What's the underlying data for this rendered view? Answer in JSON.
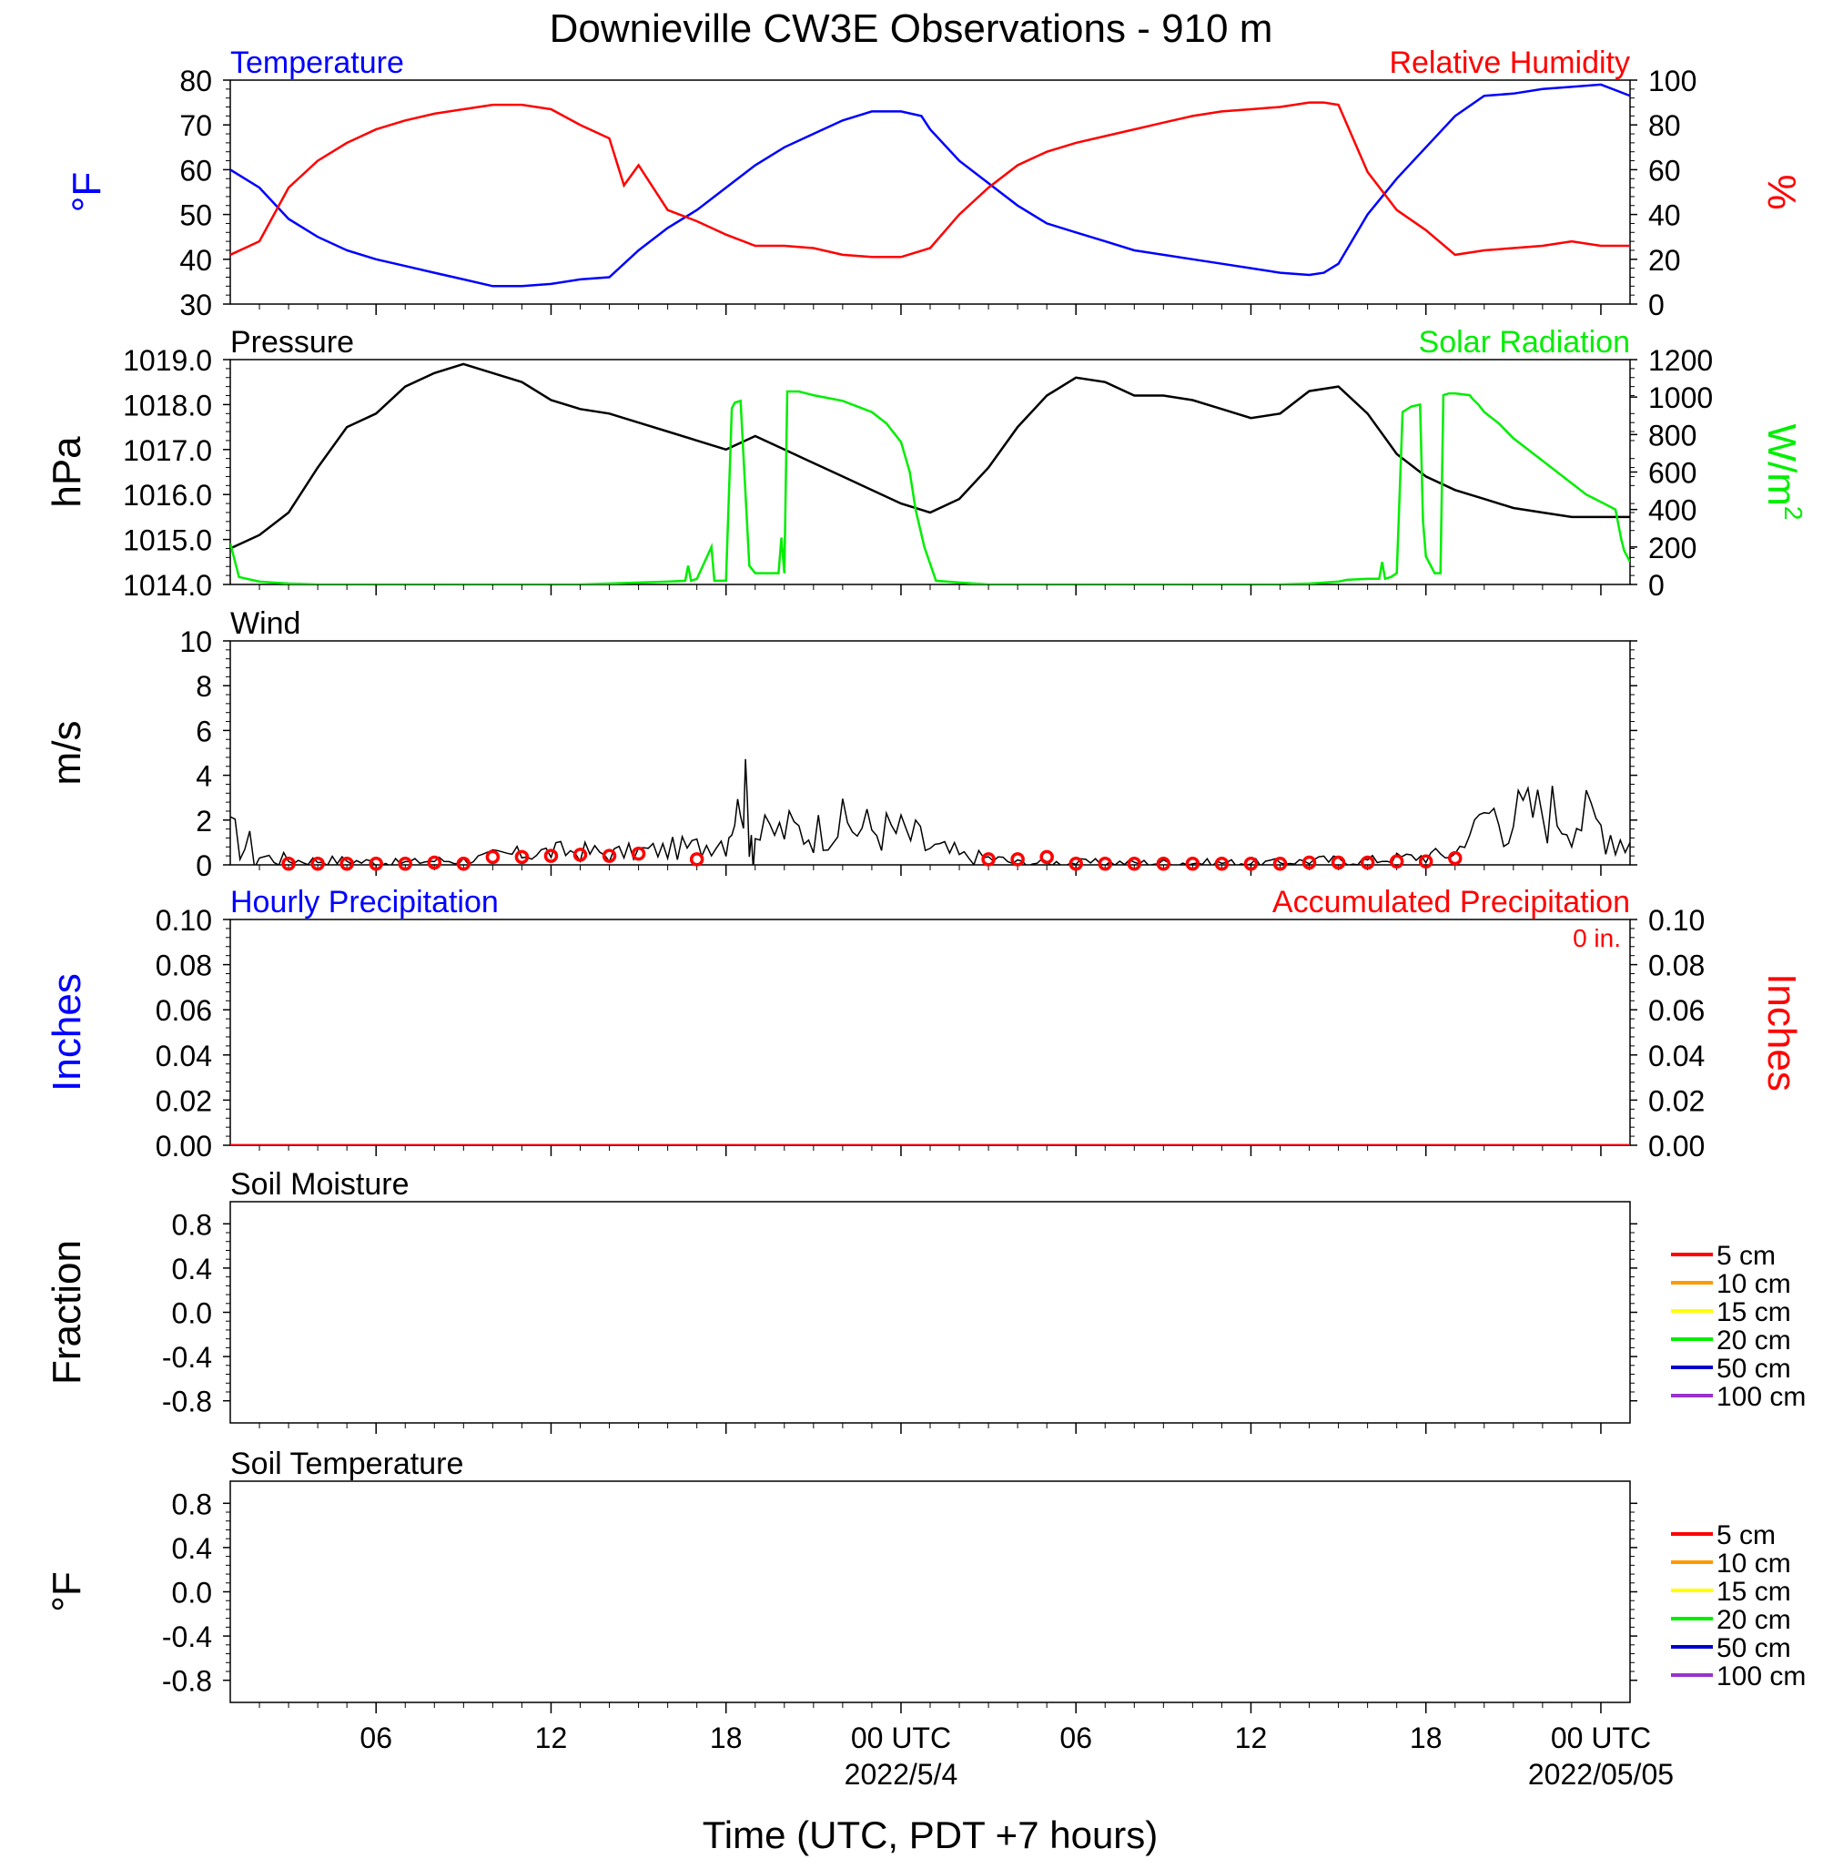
{
  "page": {
    "title": "Downieville CW3E Observations - 910 m",
    "xlabel": "Time (UTC, PDT +7 hours)",
    "x_ticks": [
      {
        "hour": 6,
        "label": "06"
      },
      {
        "hour": 12,
        "label": "12"
      },
      {
        "hour": 18,
        "label": "18"
      },
      {
        "hour": 24,
        "label": "00 UTC",
        "sub": "2022/5/4"
      },
      {
        "hour": 30,
        "label": "06"
      },
      {
        "hour": 36,
        "label": "12"
      },
      {
        "hour": 42,
        "label": "18"
      },
      {
        "hour": 48,
        "label": "00 UTC",
        "sub": "2022/05/05"
      }
    ],
    "x_range_hours": [
      1,
      49
    ]
  },
  "colors": {
    "blue": "#0000ff",
    "red": "#ff0000",
    "green": "#00ee00",
    "black": "#000000",
    "orange": "#ff9900",
    "yellow": "#ffff00",
    "darkblue": "#0000cc",
    "purple": "#9933cc"
  },
  "chart_data": [
    {
      "type": "line",
      "panel": "temperature-rh",
      "left_title": "Temperature",
      "right_title": "Relative Humidity",
      "ylabel_left": "°F",
      "ylabel_right": "%",
      "ylim_left": [
        30,
        80
      ],
      "yticks_left": [
        30,
        40,
        50,
        60,
        70,
        80
      ],
      "ylim_right": [
        0,
        100
      ],
      "yticks_right": [
        0,
        20,
        40,
        60,
        80,
        100
      ],
      "series": [
        {
          "name": "Temperature",
          "axis": "left",
          "color": "#0000ff",
          "x": [
            1,
            2,
            3,
            4,
            5,
            6,
            7,
            8,
            9,
            10,
            11,
            12,
            13,
            14,
            15,
            16,
            17,
            18,
            19,
            20,
            21,
            22,
            23,
            24,
            24.7,
            25,
            26,
            27,
            28,
            29,
            30,
            31,
            32,
            33,
            34,
            35,
            36,
            37,
            38,
            38.5,
            39,
            40,
            41,
            42,
            43,
            44,
            45,
            46,
            47,
            48,
            49
          ],
          "y": [
            60,
            56,
            49,
            45,
            42,
            40,
            38.5,
            37,
            35.5,
            34,
            34,
            34.5,
            35.5,
            36,
            42,
            47,
            51,
            56,
            61,
            65,
            68,
            71,
            73,
            73,
            72,
            69,
            62,
            57,
            52,
            48,
            46,
            44,
            42,
            41,
            40,
            39,
            38,
            37,
            36.5,
            37,
            39,
            50,
            58,
            65,
            72,
            76.5,
            77,
            78,
            78.5,
            79,
            76.5
          ]
        },
        {
          "name": "Relative Humidity",
          "axis": "right",
          "color": "#ff0000",
          "x": [
            1,
            2,
            3,
            4,
            5,
            6,
            7,
            8,
            9,
            10,
            11,
            12,
            13,
            14,
            14.5,
            15,
            16,
            17,
            18,
            19,
            20,
            21,
            22,
            23,
            24,
            25,
            26,
            27,
            28,
            29,
            30,
            31,
            32,
            33,
            34,
            35,
            36,
            37,
            38,
            38.5,
            39,
            40,
            41,
            42,
            43,
            44,
            45,
            46,
            47,
            48,
            49
          ],
          "y": [
            22,
            28,
            52,
            64,
            72,
            78,
            82,
            85,
            87,
            89,
            89,
            87,
            80,
            74,
            53,
            62,
            42,
            37,
            31,
            26,
            26,
            25,
            22,
            21,
            21,
            25,
            40,
            52,
            62,
            68,
            72,
            75,
            78,
            81,
            84,
            86,
            87,
            88,
            90,
            90,
            89,
            59,
            42,
            33,
            22,
            24,
            25,
            26,
            28,
            26,
            26
          ]
        }
      ]
    },
    {
      "type": "line",
      "panel": "pressure-solar",
      "left_title": "Pressure",
      "right_title": "Solar Radiation",
      "ylabel_left": "hPa",
      "ylabel_right": "W/m",
      "ylabel_right_sup": "2",
      "ylim_left": [
        1014.0,
        1019.0
      ],
      "yticks_left": [
        "1014.0",
        "1015.0",
        "1016.0",
        "1017.0",
        "1018.0",
        "1019.0"
      ],
      "ylim_right": [
        0,
        1200
      ],
      "yticks_right": [
        0,
        200,
        400,
        600,
        800,
        1000,
        1200
      ],
      "series": [
        {
          "name": "Pressure",
          "axis": "left",
          "color": "#000000",
          "x": [
            1,
            2,
            3,
            4,
            5,
            6,
            7,
            8,
            9,
            10,
            11,
            12,
            13,
            14,
            15,
            16,
            17,
            18,
            19,
            20,
            21,
            22,
            23,
            24,
            25,
            26,
            27,
            28,
            29,
            30,
            31,
            32,
            33,
            34,
            35,
            36,
            37,
            38,
            39,
            40,
            41,
            42,
            43,
            44,
            45,
            46,
            47,
            48,
            49
          ],
          "y": [
            1014.8,
            1015.1,
            1015.6,
            1016.6,
            1017.5,
            1017.8,
            1018.4,
            1018.7,
            1018.9,
            1018.7,
            1018.5,
            1018.1,
            1017.9,
            1017.8,
            1017.6,
            1017.4,
            1017.2,
            1017.0,
            1017.3,
            1017.0,
            1016.7,
            1016.4,
            1016.1,
            1015.8,
            1015.6,
            1015.9,
            1016.6,
            1017.5,
            1018.2,
            1018.6,
            1018.5,
            1018.2,
            1018.2,
            1018.1,
            1017.9,
            1017.7,
            1017.8,
            1018.3,
            1018.4,
            1017.8,
            1016.9,
            1016.4,
            1016.1,
            1015.9,
            1015.7,
            1015.6,
            1015.5,
            1015.5,
            1015.5
          ]
        },
        {
          "name": "Solar Radiation",
          "axis": "right",
          "color": "#00ee00",
          "x": [
            1,
            1.3,
            2,
            3,
            4,
            5,
            6,
            7,
            8,
            9,
            10,
            11,
            12,
            13,
            14,
            15,
            16,
            16.6,
            16.7,
            16.8,
            17,
            17.5,
            17.6,
            18,
            18.2,
            18.3,
            18.5,
            18.8,
            19,
            19.3,
            19.8,
            19.9,
            20.0,
            20.1,
            20.2,
            20.5,
            21,
            22,
            23,
            23.5,
            24,
            24.3,
            24.5,
            24.8,
            25.2,
            26,
            27,
            28,
            29,
            30,
            31,
            32,
            33,
            34,
            35,
            36,
            37,
            38,
            39,
            39.3,
            40,
            40.4,
            40.5,
            40.6,
            40.8,
            41,
            41.2,
            41.5,
            41.8,
            41.9,
            42.0,
            42.3,
            42.5,
            42.6,
            42.8,
            43,
            43.5,
            43.6,
            43.8,
            44,
            44.5,
            45,
            46,
            47,
            47.5,
            48,
            48.5,
            48.7,
            48.8,
            49
          ],
          "y": [
            220,
            40,
            15,
            5,
            0,
            0,
            0,
            0,
            0,
            0,
            0,
            0,
            0,
            0,
            5,
            10,
            15,
            20,
            100,
            20,
            30,
            200,
            20,
            20,
            940,
            970,
            980,
            100,
            60,
            60,
            60,
            250,
            60,
            1030,
            1030,
            1030,
            1010,
            980,
            920,
            860,
            760,
            600,
            400,
            200,
            20,
            10,
            0,
            0,
            0,
            0,
            0,
            0,
            0,
            0,
            0,
            0,
            0,
            5,
            15,
            25,
            30,
            30,
            120,
            30,
            40,
            60,
            920,
            950,
            960,
            340,
            150,
            60,
            60,
            1010,
            1020,
            1020,
            1010,
            990,
            960,
            920,
            860,
            780,
            660,
            540,
            480,
            440,
            400,
            240,
            180,
            120
          ]
        }
      ]
    },
    {
      "type": "line",
      "panel": "wind",
      "left_title": "Wind",
      "ylabel_left": "m/s",
      "ylim_left": [
        0,
        10
      ],
      "yticks_left": [
        0,
        2,
        4,
        6,
        8,
        10
      ],
      "series": [
        {
          "name": "Wind",
          "axis": "left",
          "color": "#000000",
          "x": [
            1,
            2,
            3,
            4,
            5,
            6,
            7,
            8,
            9,
            10,
            11,
            12,
            13,
            14,
            15,
            16,
            17,
            18,
            18.6,
            19,
            20,
            21,
            22,
            23,
            24,
            25,
            26,
            27,
            28,
            29,
            30,
            31,
            32,
            33,
            34,
            35,
            36,
            37,
            38,
            39,
            40,
            41,
            42,
            43,
            44,
            45,
            46,
            47,
            48,
            49
          ],
          "y": [
            1.4,
            0.4,
            0.2,
            0.2,
            0.2,
            0.1,
            0.1,
            0.2,
            0.2,
            0.4,
            0.5,
            0.6,
            0.6,
            0.5,
            0.6,
            0.7,
            0.8,
            1.2,
            3.2,
            1.3,
            1.6,
            1.5,
            1.8,
            1.6,
            1.5,
            0.8,
            0.4,
            0.3,
            0.1,
            0.1,
            0.1,
            0.1,
            0.1,
            0.1,
            0.1,
            0.1,
            0.1,
            0.1,
            0.2,
            0.2,
            0.2,
            0.3,
            0.4,
            0.5,
            2.4,
            2.2,
            2.5,
            2.3,
            1.8,
            1.0
          ]
        },
        {
          "name": "Wind hourly mean",
          "axis": "left",
          "color": "#ff0000",
          "marker": "circle",
          "x": [
            3,
            4,
            5,
            6,
            7,
            8,
            9,
            10,
            11,
            12,
            13,
            14,
            15,
            17,
            27,
            28,
            29,
            30,
            31,
            32,
            33,
            34,
            35,
            36,
            37,
            38,
            39,
            40,
            41,
            42,
            43
          ],
          "y": [
            0.05,
            0.05,
            0.05,
            0.05,
            0.05,
            0.1,
            0.05,
            0.35,
            0.35,
            0.4,
            0.45,
            0.4,
            0.5,
            0.25,
            0.25,
            0.25,
            0.35,
            0.05,
            0.05,
            0.05,
            0.05,
            0.05,
            0.05,
            0.05,
            0.05,
            0.1,
            0.1,
            0.1,
            0.15,
            0.15,
            0.3
          ]
        }
      ]
    },
    {
      "type": "line",
      "panel": "precipitation",
      "left_title": "Hourly Precipitation",
      "right_title": "Accumulated Precipitation",
      "annotation": "0 in.",
      "ylabel_left": "Inches",
      "ylabel_right": "Inches",
      "ylim_left": [
        0,
        0.1
      ],
      "yticks_left": [
        "0.00",
        "0.02",
        "0.04",
        "0.06",
        "0.08",
        "0.10"
      ],
      "ylim_right": [
        0,
        0.1
      ],
      "yticks_right": [
        "0.00",
        "0.02",
        "0.04",
        "0.06",
        "0.08",
        "0.10"
      ],
      "series": [
        {
          "name": "Hourly Precipitation",
          "axis": "left",
          "color": "#0000ff",
          "x": [
            1,
            49
          ],
          "y": [
            0,
            0
          ]
        },
        {
          "name": "Accumulated Precipitation",
          "axis": "right",
          "color": "#ff0000",
          "x": [
            1,
            49
          ],
          "y": [
            0,
            0
          ]
        }
      ]
    },
    {
      "type": "line",
      "panel": "soil-moisture",
      "left_title": "Soil Moisture",
      "ylabel_left": "Fraction",
      "ylim_left": [
        -1,
        1
      ],
      "yticks_left": [
        "-0.8",
        "-0.4",
        "0.0",
        "0.4",
        "0.8"
      ],
      "legend": [
        {
          "label": "5 cm",
          "color": "#ff0000"
        },
        {
          "label": "10 cm",
          "color": "#ff9900"
        },
        {
          "label": "15 cm",
          "color": "#ffff00"
        },
        {
          "label": "20 cm",
          "color": "#00ee00"
        },
        {
          "label": "50 cm",
          "color": "#0000cc"
        },
        {
          "label": "100 cm",
          "color": "#9933cc"
        }
      ],
      "series": []
    },
    {
      "type": "line",
      "panel": "soil-temperature",
      "left_title": "Soil Temperature",
      "ylabel_left": "°F",
      "ylim_left": [
        -1,
        1
      ],
      "yticks_left": [
        "-0.8",
        "-0.4",
        "0.0",
        "0.4",
        "0.8"
      ],
      "legend": [
        {
          "label": "5 cm",
          "color": "#ff0000"
        },
        {
          "label": "10 cm",
          "color": "#ff9900"
        },
        {
          "label": "15 cm",
          "color": "#ffff00"
        },
        {
          "label": "20 cm",
          "color": "#00ee00"
        },
        {
          "label": "50 cm",
          "color": "#0000cc"
        },
        {
          "label": "100 cm",
          "color": "#9933cc"
        }
      ],
      "series": []
    }
  ]
}
